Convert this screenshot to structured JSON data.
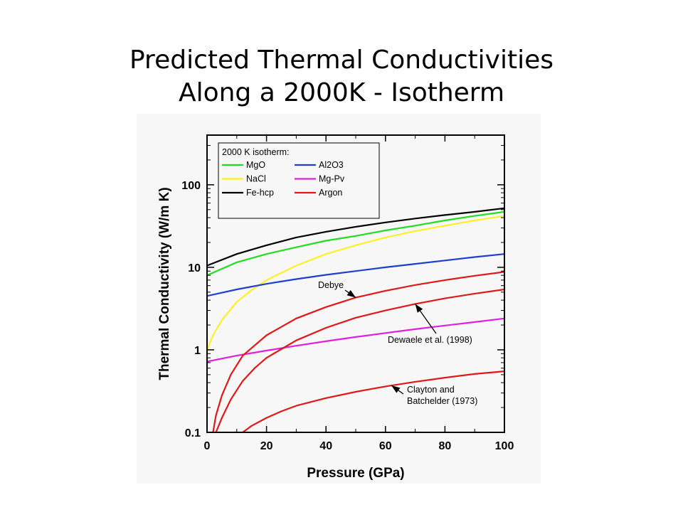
{
  "slide": {
    "title_line1": "Predicted Thermal Conductivities",
    "title_line2": "Along a 2000K - Isotherm"
  },
  "chart_data": {
    "type": "line",
    "xlabel": "Pressure (GPa)",
    "ylabel": "Thermal Conductivity (W/m K)",
    "xlim": [
      0,
      100
    ],
    "ylim": [
      0.1,
      400
    ],
    "y_scale": "log",
    "grid": false,
    "x_ticks": [
      0,
      20,
      40,
      60,
      80,
      100
    ],
    "x_tick_labels": [
      "0",
      "20",
      "40",
      "60",
      "80",
      "100"
    ],
    "y_ticks": [
      0.1,
      1,
      10,
      100
    ],
    "y_tick_labels": [
      "0.1",
      "1",
      "10",
      "100"
    ],
    "legend": {
      "title": "2000 K isotherm:",
      "placement": "top-left",
      "entries": [
        {
          "label": "MgO",
          "color": "#22dd22"
        },
        {
          "label": "Al2O3",
          "color": "#1f3fd0"
        },
        {
          "label": "NaCl",
          "color": "#ffef26"
        },
        {
          "label": "Mg-Pv",
          "color": "#e020e0"
        },
        {
          "label": "Fe-hcp",
          "color": "#000000"
        },
        {
          "label": "Argon",
          "color": "#e01818"
        }
      ]
    },
    "series": [
      {
        "name": "Fe-hcp",
        "color": "#000000",
        "x": [
          0,
          10,
          20,
          30,
          40,
          50,
          60,
          70,
          80,
          90,
          100
        ],
        "y": [
          10.5,
          14.5,
          18.5,
          23,
          27,
          31,
          35,
          39,
          43,
          47,
          52
        ]
      },
      {
        "name": "MgO",
        "color": "#22dd22",
        "x": [
          0,
          10,
          20,
          30,
          40,
          50,
          60,
          70,
          80,
          90,
          100
        ],
        "y": [
          8,
          11.5,
          14.5,
          17.5,
          21,
          24,
          28,
          32,
          37,
          42,
          47
        ]
      },
      {
        "name": "NaCl",
        "color": "#ffef26",
        "x": [
          0,
          2,
          5,
          10,
          15,
          20,
          30,
          40,
          50,
          60,
          70,
          80,
          90,
          100
        ],
        "y": [
          1.0,
          1.5,
          2.3,
          3.8,
          5.3,
          7.0,
          10.5,
          14.5,
          18.5,
          23,
          27.5,
          32,
          37,
          42
        ]
      },
      {
        "name": "Al2O3",
        "color": "#1f3fd0",
        "x": [
          0,
          10,
          20,
          30,
          40,
          50,
          60,
          70,
          80,
          90,
          100
        ],
        "y": [
          4.5,
          5.4,
          6.3,
          7.2,
          8.1,
          9.0,
          10.0,
          11.0,
          12.1,
          13.3,
          14.5
        ]
      },
      {
        "name": "Mg-Pv",
        "color": "#e020e0",
        "x": [
          0,
          10,
          20,
          30,
          40,
          50,
          60,
          70,
          80,
          90,
          100
        ],
        "y": [
          0.72,
          0.85,
          0.98,
          1.12,
          1.27,
          1.43,
          1.6,
          1.78,
          1.97,
          2.17,
          2.4
        ]
      },
      {
        "name": "Argon",
        "color": "#e01818",
        "x": [
          2,
          3,
          5,
          8,
          12,
          20,
          30,
          40,
          50,
          60,
          70,
          80,
          90,
          100
        ],
        "y": [
          0.1,
          0.16,
          0.28,
          0.5,
          0.85,
          1.5,
          2.4,
          3.3,
          4.3,
          5.2,
          6.1,
          7.0,
          7.9,
          8.8
        ]
      },
      {
        "name": "Argon",
        "color": "#e01818",
        "x": [
          3,
          5,
          8,
          12,
          16,
          20,
          30,
          40,
          50,
          60,
          70,
          80,
          90,
          100
        ],
        "y": [
          0.1,
          0.15,
          0.25,
          0.42,
          0.6,
          0.8,
          1.3,
          1.85,
          2.45,
          3.0,
          3.6,
          4.2,
          4.8,
          5.4
        ]
      },
      {
        "name": "Argon",
        "color": "#e01818",
        "x": [
          12,
          15,
          20,
          25,
          30,
          40,
          50,
          60,
          70,
          80,
          90,
          100
        ],
        "y": [
          0.1,
          0.12,
          0.15,
          0.18,
          0.21,
          0.26,
          0.31,
          0.36,
          0.41,
          0.46,
          0.51,
          0.55
        ]
      }
    ],
    "annotations": [
      {
        "id": "debye",
        "lines": [
          "Debye"
        ],
        "target": [
          50,
          4.3
        ]
      },
      {
        "id": "dewaele",
        "lines": [
          "Dewaele et al. (1998)"
        ],
        "target": [
          70,
          3.6
        ]
      },
      {
        "id": "clayton",
        "lines": [
          "Clayton and",
          "Batchelder (1973)"
        ],
        "target": [
          62,
          0.37
        ]
      }
    ]
  }
}
